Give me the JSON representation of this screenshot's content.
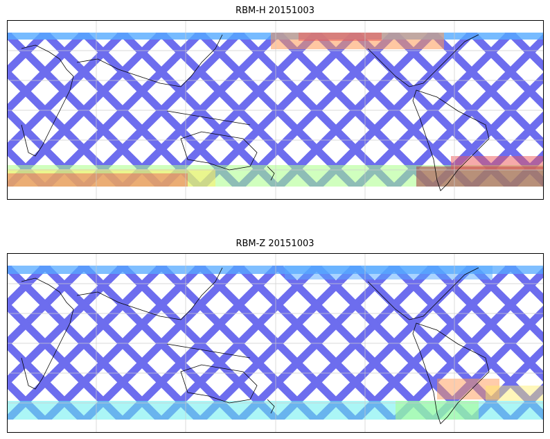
{
  "panels": [
    {
      "title": "RBM-H 20151003"
    },
    {
      "title": "RBM-Z 20151003"
    }
  ],
  "colors": {
    "track_low": "#6666ee",
    "track_mid": "#55aaff",
    "cyan": "#66eeee",
    "green": "#aaff88",
    "yellow": "#ffee66",
    "orange": "#ff9955",
    "red": "#ee5555",
    "maroon": "#aa5555",
    "coastline": "#000000",
    "gridline": "#cccccc"
  }
}
